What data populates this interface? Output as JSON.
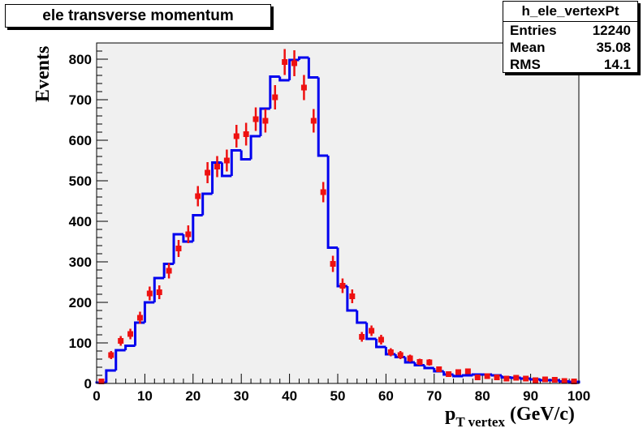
{
  "chart_data": {
    "type": "histogram",
    "title": "ele transverse momentum",
    "xlabel_main": "p",
    "xlabel_sub": "T vertex",
    "xlabel_unit": "(GeV/c)",
    "ylabel": "Events",
    "xlim": [
      0,
      100
    ],
    "ylim": [
      0,
      840
    ],
    "x_ticks": [
      0,
      10,
      20,
      30,
      40,
      50,
      60,
      70,
      80,
      90,
      100
    ],
    "y_ticks": [
      0,
      100,
      200,
      300,
      400,
      500,
      600,
      700,
      800
    ],
    "stats": {
      "name": "h_ele_vertexPt",
      "rows": [
        {
          "label": "Entries",
          "value": "12240"
        },
        {
          "label": "Mean",
          "value": "35.08"
        },
        {
          "label": "RMS",
          "value": "14.1"
        }
      ]
    },
    "bin_width": 2,
    "reference_hist": {
      "color": "#0000ee",
      "bin_low_edges": [
        0,
        2,
        4,
        6,
        8,
        10,
        12,
        14,
        16,
        18,
        20,
        22,
        24,
        26,
        28,
        30,
        32,
        34,
        36,
        38,
        40,
        42,
        44,
        46,
        48,
        50,
        52,
        54,
        56,
        58,
        60,
        62,
        64,
        66,
        68,
        70,
        72,
        74,
        76,
        78,
        80,
        82,
        84,
        86,
        88,
        90,
        92,
        94,
        96,
        98
      ],
      "values": [
        2,
        32,
        82,
        93,
        150,
        200,
        260,
        295,
        368,
        350,
        415,
        468,
        545,
        512,
        575,
        553,
        610,
        678,
        757,
        748,
        798,
        804,
        755,
        562,
        335,
        240,
        180,
        150,
        110,
        90,
        72,
        65,
        52,
        45,
        38,
        30,
        22,
        18,
        20,
        22,
        22,
        20,
        15,
        14,
        12,
        10,
        8,
        8,
        5,
        4
      ]
    },
    "data_points": {
      "color": "#ee1111",
      "x": [
        1,
        3,
        5,
        7,
        9,
        11,
        13,
        15,
        17,
        19,
        21,
        23,
        25,
        27,
        29,
        31,
        33,
        35,
        37,
        39,
        41,
        43,
        45,
        47,
        49,
        51,
        53,
        55,
        57,
        59,
        61,
        63,
        65,
        67,
        69,
        71,
        73,
        75,
        77,
        79,
        81,
        83,
        85,
        87,
        89,
        91,
        93,
        95,
        97,
        99
      ],
      "y": [
        5,
        70,
        105,
        122,
        162,
        222,
        225,
        278,
        333,
        368,
        462,
        520,
        535,
        550,
        610,
        615,
        652,
        648,
        706,
        793,
        790,
        730,
        648,
        472,
        295,
        241,
        215,
        115,
        130,
        108,
        77,
        70,
        62,
        53,
        52,
        35,
        23,
        28,
        30,
        15,
        18,
        15,
        12,
        14,
        12,
        8,
        10,
        9,
        6,
        5
      ],
      "err": [
        3,
        10,
        12,
        13,
        15,
        17,
        17,
        19,
        21,
        22,
        25,
        26,
        26,
        27,
        28,
        28,
        29,
        29,
        30,
        32,
        32,
        31,
        29,
        25,
        20,
        18,
        17,
        12,
        13,
        12,
        10,
        10,
        9,
        8,
        8,
        7,
        6,
        6,
        6,
        5,
        5,
        5,
        4,
        4,
        4,
        3,
        3,
        3,
        3,
        3
      ]
    }
  }
}
